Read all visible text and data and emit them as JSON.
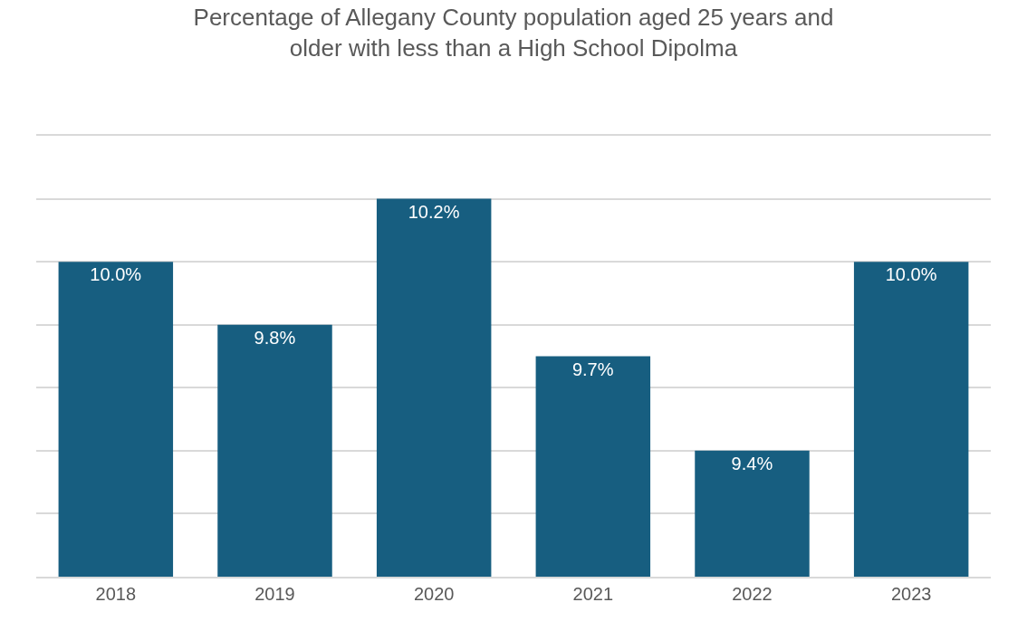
{
  "chart_data": {
    "type": "bar",
    "title": "Percentage of Allegany County population aged 25 years and\nolder with less than a High School Dipolma",
    "categories": [
      "2018",
      "2019",
      "2020",
      "2021",
      "2022",
      "2023"
    ],
    "values": [
      10.0,
      9.8,
      10.2,
      9.7,
      9.4,
      10.0
    ],
    "value_labels": [
      "10.0%",
      "9.8%",
      "10.2%",
      "9.7%",
      "9.4%",
      "10.0%"
    ],
    "color": "#175e80",
    "ylim": [
      9.0,
      10.4
    ],
    "grid": "y",
    "tick_labels": "x",
    "legend": false
  }
}
